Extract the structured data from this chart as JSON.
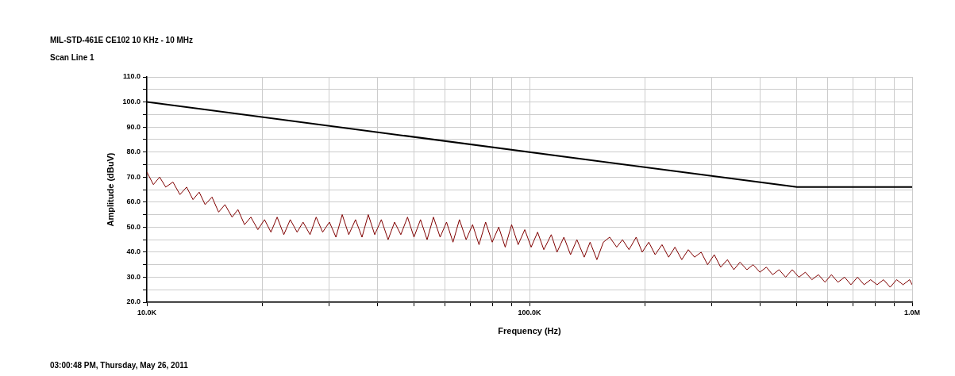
{
  "chart_data": {
    "type": "line",
    "title": "MIL-STD-461E CE102 10 KHz - 10 MHz",
    "subtitle": "Scan Line 1",
    "xlabel": "Frequency (Hz)",
    "ylabel": "Amplitude (dBuV)",
    "annotations": [
      "03:00:48 PM, Thursday, May 26, 2011"
    ],
    "log": "x",
    "grid": true,
    "legend": false,
    "marker": "none",
    "line_style": "solid",
    "xlim": [
      10000,
      1000000
    ],
    "xticks": [
      {
        "value": 10000,
        "label": "10.0K"
      },
      {
        "value": 20000,
        "label": null
      },
      {
        "value": 30000,
        "label": null
      },
      {
        "value": 40000,
        "label": null
      },
      {
        "value": 50000,
        "label": null
      },
      {
        "value": 60000,
        "label": null
      },
      {
        "value": 70000,
        "label": null
      },
      {
        "value": 80000,
        "label": null
      },
      {
        "value": 90000,
        "label": null
      },
      {
        "value": 100000,
        "label": "100.0K"
      },
      {
        "value": 200000,
        "label": null
      },
      {
        "value": 300000,
        "label": null
      },
      {
        "value": 400000,
        "label": null
      },
      {
        "value": 500000,
        "label": null
      },
      {
        "value": 600000,
        "label": null
      },
      {
        "value": 700000,
        "label": null
      },
      {
        "value": 800000,
        "label": null
      },
      {
        "value": 900000,
        "label": null
      },
      {
        "value": 1000000,
        "label": "1.0M"
      }
    ],
    "ylim": [
      20,
      110
    ],
    "yticks": [
      {
        "value": 20,
        "label": "20.0"
      },
      {
        "value": 25,
        "label": null
      },
      {
        "value": 30,
        "label": "30.0"
      },
      {
        "value": 35,
        "label": null
      },
      {
        "value": 40,
        "label": "40.0"
      },
      {
        "value": 45,
        "label": null
      },
      {
        "value": 50,
        "label": "50.0"
      },
      {
        "value": 55,
        "label": null
      },
      {
        "value": 60,
        "label": "60.0"
      },
      {
        "value": 65,
        "label": null
      },
      {
        "value": 70,
        "label": "70.0"
      },
      {
        "value": 75,
        "label": null
      },
      {
        "value": 80,
        "label": "80.0"
      },
      {
        "value": 85,
        "label": null
      },
      {
        "value": 90,
        "label": "90.0"
      },
      {
        "value": 95,
        "label": null
      },
      {
        "value": 100,
        "label": "100.0"
      },
      {
        "value": 105,
        "label": null
      },
      {
        "value": 110,
        "label": "110.0"
      }
    ],
    "series": [
      {
        "color": "#000000",
        "x": [
          10000,
          500000,
          1000000
        ],
        "values": [
          100,
          66,
          66
        ]
      },
      {
        "color": "#800000",
        "x": [
          10000,
          10400,
          10800,
          11200,
          11700,
          12200,
          12700,
          13200,
          13700,
          14200,
          14800,
          15400,
          16000,
          16700,
          17300,
          18000,
          18700,
          19500,
          20300,
          21100,
          21900,
          22800,
          23700,
          24700,
          25600,
          26700,
          27700,
          28800,
          30000,
          31200,
          32400,
          33700,
          35100,
          36500,
          37900,
          39400,
          41000,
          42700,
          44400,
          46100,
          48000,
          49900,
          51900,
          54000,
          56100,
          58400,
          60700,
          63100,
          65600,
          68300,
          71000,
          73800,
          76800,
          79900,
          83100,
          86400,
          89800,
          93400,
          97200,
          101000,
          105000,
          109000,
          114000,
          118000,
          123000,
          128000,
          133000,
          139000,
          144000,
          150000,
          156000,
          162000,
          169000,
          175000,
          182000,
          190000,
          197000,
          205000,
          213000,
          222000,
          231000,
          240000,
          250000,
          260000,
          270000,
          281000,
          292000,
          304000,
          316000,
          329000,
          342000,
          355000,
          370000,
          384000,
          400000,
          416000,
          432000,
          449000,
          467000,
          486000,
          506000,
          526000,
          547000,
          569000,
          592000,
          615000,
          640000,
          666000,
          692000,
          720000,
          749000,
          779000,
          810000,
          842000,
          876000,
          911000,
          947000,
          985000,
          1000000
        ],
        "values": [
          72,
          67,
          70,
          66,
          68,
          63,
          66,
          61,
          64,
          59,
          62,
          56,
          59,
          54,
          57,
          51,
          54,
          49,
          53,
          48,
          54,
          47,
          53,
          48,
          52,
          47,
          54,
          48,
          52,
          46,
          55,
          47,
          53,
          46,
          55,
          47,
          53,
          45,
          52,
          47,
          54,
          46,
          53,
          45,
          54,
          46,
          52,
          44,
          53,
          45,
          51,
          43,
          52,
          44,
          50,
          42,
          51,
          43,
          49,
          42,
          48,
          41,
          47,
          40,
          46,
          39,
          45,
          38,
          44,
          37,
          44,
          46,
          42,
          45,
          41,
          46,
          40,
          44,
          39,
          43,
          38,
          42,
          37,
          41,
          38,
          40,
          35,
          39,
          34,
          37,
          33,
          36,
          33,
          35,
          32,
          34,
          31,
          33,
          30,
          33,
          30,
          32,
          29,
          31,
          28,
          31,
          28,
          30,
          27,
          30,
          27,
          29,
          27,
          29,
          26,
          29,
          27,
          29,
          27
        ]
      }
    ]
  }
}
